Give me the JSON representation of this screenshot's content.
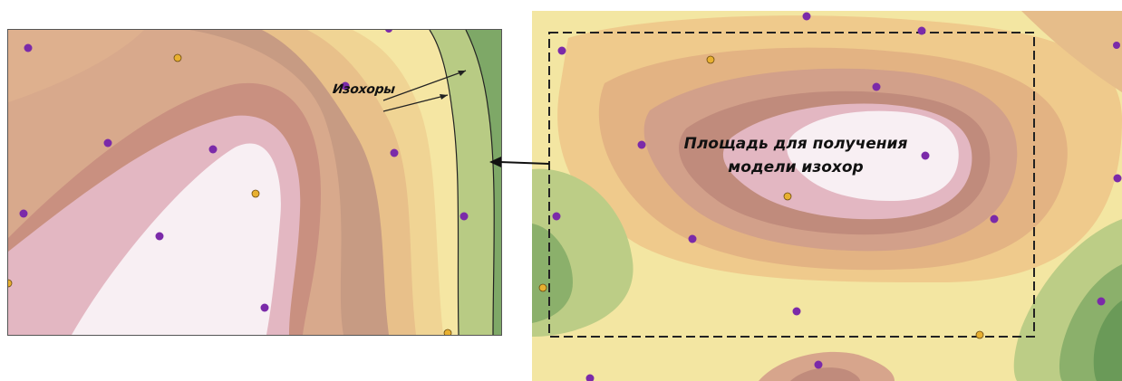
{
  "left_map": {
    "isochores_label": "Изохоры",
    "contour_colors": [
      "#c79b83",
      "#deaf8c",
      "#efcb8f",
      "#f5e6a1",
      "#efe9a0",
      "#b6c981",
      "#7aa464",
      "#e3b7c2",
      "#f8eff3"
    ]
  },
  "right_map": {
    "caption_line1": "Площадь для получения",
    "caption_line2": "модели изохор",
    "point_color": "#7b2aa9",
    "well_marker_color": "#e8b030",
    "selection_frame_style": "dashed"
  }
}
